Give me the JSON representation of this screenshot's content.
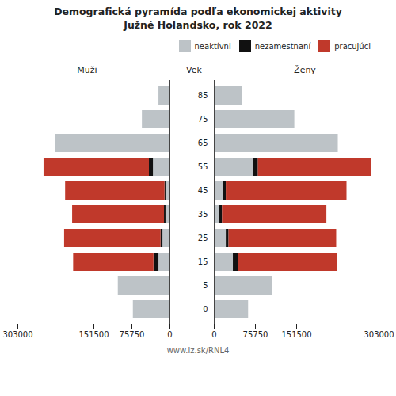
{
  "chart_data": {
    "type": "bar",
    "orientation": "horizontal",
    "stacked": true,
    "title": "Demografická pyramída podľa ekonomickej aktivity",
    "subtitle": "Južné Holandsko, rok 2022",
    "caption": "www.iz.sk/RNL4",
    "ylabel": "Vek",
    "categories": [
      0,
      5,
      15,
      25,
      35,
      45,
      55,
      65,
      75,
      85
    ],
    "xlim": [
      0,
      303000
    ],
    "xticks": [
      0,
      75750,
      151500,
      303000
    ],
    "grid": false,
    "legend": "upper right",
    "panels": [
      {
        "title": "Muži",
        "series": [
          {
            "name": "neaktívni",
            "color": "#bdc3c7",
            "values": [
              73000,
              103000,
              22000,
              14000,
              8000,
              8000,
              33000,
              228000,
              55000,
              22000
            ]
          },
          {
            "name": "nezamestnaní",
            "color": "#111111",
            "values": [
              0,
              0,
              10000,
              4000,
              3000,
              2000,
              8000,
              0,
              0,
              0
            ]
          },
          {
            "name": "pracujúci",
            "color": "#c0392b",
            "values": [
              0,
              0,
              160000,
              192000,
              183000,
              198000,
              210000,
              0,
              0,
              0
            ]
          }
        ]
      },
      {
        "title": "Ženy",
        "series": [
          {
            "name": "neaktívni",
            "color": "#bdc3c7",
            "values": [
              63000,
              107000,
              35000,
              22000,
              10000,
              17000,
              72000,
              228000,
              148000,
              52000
            ]
          },
          {
            "name": "nezamestnaní",
            "color": "#111111",
            "values": [
              0,
              0,
              10000,
              5000,
              5000,
              5000,
              9000,
              0,
              0,
              0
            ]
          },
          {
            "name": "pracujúci",
            "color": "#c0392b",
            "values": [
              0,
              0,
              182000,
              198000,
              192000,
              222000,
              208000,
              0,
              0,
              0
            ]
          }
        ]
      }
    ]
  }
}
